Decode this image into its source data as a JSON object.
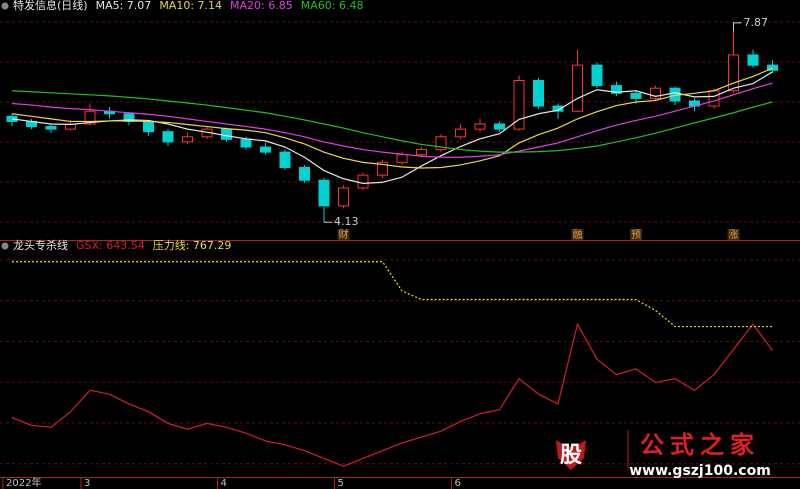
{
  "chart_data": [
    {
      "type": "candlestick",
      "title": "特发信息(日线)",
      "open": [
        6.2,
        6.1,
        6.0,
        5.95,
        6.05,
        6.3,
        6.25,
        6.1,
        5.9,
        5.7,
        5.8,
        5.95,
        5.75,
        5.6,
        5.5,
        5.2,
        4.95,
        4.45,
        4.8,
        5.05,
        5.3,
        5.45,
        5.55,
        5.8,
        5.95,
        6.05,
        5.95,
        6.9,
        6.4,
        6.3,
        7.2,
        6.8,
        6.65,
        6.55,
        6.75,
        6.5,
        6.4,
        6.7,
        7.4,
        7.2
      ],
      "high": [
        6.25,
        6.15,
        6.05,
        6.12,
        6.45,
        6.38,
        6.28,
        6.12,
        5.95,
        5.88,
        6.0,
        5.98,
        5.8,
        5.68,
        5.55,
        5.25,
        5.0,
        4.85,
        5.1,
        5.35,
        5.5,
        5.6,
        5.85,
        6.05,
        6.15,
        6.1,
        7.0,
        6.95,
        6.45,
        7.5,
        7.25,
        6.88,
        6.7,
        6.8,
        6.78,
        6.55,
        6.75,
        7.87,
        7.5,
        7.3
      ],
      "low": [
        6.0,
        5.95,
        5.88,
        5.92,
        6.02,
        6.15,
        6.02,
        5.82,
        5.62,
        5.66,
        5.76,
        5.7,
        5.55,
        5.45,
        5.15,
        4.9,
        4.13,
        4.4,
        4.76,
        5.0,
        5.25,
        5.4,
        5.5,
        5.75,
        5.9,
        5.9,
        5.92,
        6.35,
        6.15,
        6.28,
        6.75,
        6.6,
        6.45,
        6.5,
        6.42,
        6.3,
        6.35,
        6.65,
        7.15,
        7.05
      ],
      "close": [
        6.1,
        6.0,
        5.95,
        6.05,
        6.3,
        6.25,
        6.1,
        5.9,
        5.7,
        5.8,
        5.95,
        5.75,
        5.6,
        5.5,
        5.2,
        4.95,
        4.45,
        4.8,
        5.05,
        5.3,
        5.45,
        5.55,
        5.8,
        5.95,
        6.05,
        5.95,
        6.9,
        6.4,
        6.3,
        7.2,
        6.8,
        6.65,
        6.55,
        6.75,
        6.5,
        6.4,
        6.7,
        7.4,
        7.2,
        7.1
      ],
      "up_color": "#ff3232",
      "down_color": "#00d2d2",
      "series": [
        {
          "label": "MA5: 7.07",
          "color": "#e6e6e6",
          "values": [
            6.15,
            6.1,
            6.05,
            6.04,
            6.08,
            6.11,
            6.13,
            6.12,
            6.05,
            5.95,
            5.89,
            5.82,
            5.76,
            5.72,
            5.6,
            5.4,
            5.14,
            4.98,
            4.89,
            4.91,
            5.01,
            5.23,
            5.43,
            5.61,
            5.76,
            5.86,
            6.14,
            6.25,
            6.32,
            6.55,
            6.72,
            6.67,
            6.7,
            6.59,
            6.66,
            6.58,
            6.59,
            6.75,
            6.84,
            7.07
          ]
        },
        {
          "label": "MA10: 7.14",
          "color": "#e8d84a",
          "values": [
            6.25,
            6.2,
            6.15,
            6.1,
            6.1,
            6.11,
            6.11,
            6.1,
            6.08,
            6.04,
            6.0,
            5.96,
            5.93,
            5.88,
            5.78,
            5.66,
            5.5,
            5.38,
            5.3,
            5.26,
            5.21,
            5.19,
            5.2,
            5.25,
            5.33,
            5.43,
            5.68,
            5.84,
            5.97,
            6.15,
            6.29,
            6.41,
            6.48,
            6.51,
            6.61,
            6.65,
            6.7,
            6.85,
            6.98,
            7.14
          ]
        },
        {
          "label": "MA20: 6.85",
          "color": "#e040e0",
          "values": [
            6.45,
            6.42,
            6.38,
            6.35,
            6.33,
            6.3,
            6.27,
            6.24,
            6.2,
            6.15,
            6.1,
            6.05,
            6.0,
            5.95,
            5.88,
            5.8,
            5.7,
            5.62,
            5.55,
            5.5,
            5.46,
            5.42,
            5.4,
            5.4,
            5.42,
            5.45,
            5.52,
            5.6,
            5.68,
            5.8,
            5.92,
            6.03,
            6.12,
            6.2,
            6.3,
            6.4,
            6.5,
            6.62,
            6.74,
            6.85
          ]
        },
        {
          "label": "MA60: 6.48",
          "color": "#22c022",
          "values": [
            6.7,
            6.68,
            6.66,
            6.64,
            6.62,
            6.6,
            6.57,
            6.54,
            6.5,
            6.46,
            6.42,
            6.37,
            6.32,
            6.27,
            6.2,
            6.13,
            6.05,
            5.97,
            5.88,
            5.8,
            5.72,
            5.65,
            5.6,
            5.55,
            5.52,
            5.5,
            5.5,
            5.51,
            5.53,
            5.57,
            5.62,
            5.7,
            5.78,
            5.87,
            5.97,
            6.07,
            6.17,
            6.27,
            6.38,
            6.48
          ]
        }
      ],
      "ylim": [
        3.9,
        8.2
      ],
      "grid": true,
      "high_mark_index": 37,
      "low_mark_index": 16,
      "events": [
        {
          "index": 17,
          "label": "财"
        },
        {
          "index": 29,
          "label": "融"
        },
        {
          "index": 32,
          "label": "预"
        },
        {
          "index": 37,
          "label": "涨"
        }
      ],
      "xticks": [
        {
          "value": 0,
          "label": "2022年"
        },
        {
          "value": 4,
          "label": "3"
        },
        {
          "value": 11,
          "label": "4"
        },
        {
          "value": 17,
          "label": "5"
        },
        {
          "value": 23,
          "label": "6"
        }
      ]
    },
    {
      "type": "line",
      "title": "龙头专杀线",
      "series": [
        {
          "label": "GSX: 643.54",
          "color": "#d42020",
          "dashed": false,
          "values": [
            300,
            260,
            250,
            330,
            440,
            420,
            370,
            330,
            270,
            240,
            270,
            250,
            220,
            180,
            160,
            130,
            90,
            50,
            90,
            130,
            170,
            200,
            230,
            280,
            320,
            340,
            500,
            420,
            370,
            780,
            600,
            520,
            550,
            480,
            500,
            440,
            520,
            650,
            780,
            643.54
          ]
        },
        {
          "label": "压力线: 767.29",
          "color": "#e8d84a",
          "dashed": true,
          "values": [
            1100,
            1100,
            1100,
            1100,
            1100,
            1100,
            1100,
            1100,
            1100,
            1100,
            1100,
            1100,
            1100,
            1100,
            1100,
            1100,
            1100,
            1100,
            1100,
            1100,
            950,
            906,
            906,
            906,
            906,
            906,
            906,
            906,
            906,
            906,
            906,
            906,
            906,
            850,
            767.29,
            767.29,
            767.29,
            767.29,
            767.29,
            767.29
          ]
        }
      ],
      "ylim": [
        0,
        1150
      ],
      "grid": true
    }
  ],
  "watermark": {
    "icon": "股",
    "name": "公式之家",
    "url": "www.gszj100.com"
  }
}
